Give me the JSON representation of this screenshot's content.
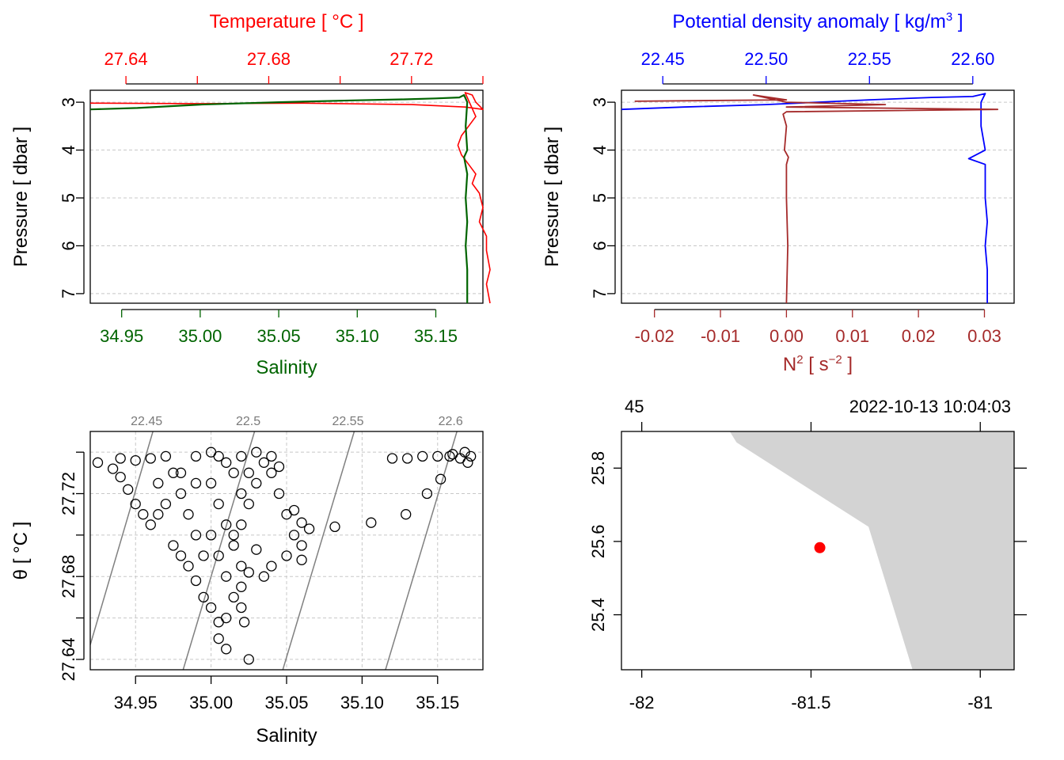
{
  "colors": {
    "temperature": "#ff0000",
    "salinity": "#006400",
    "density": "#0000ff",
    "n2": "#a52a2a",
    "isopycnal": "#808080",
    "land": "#d3d3d3",
    "station": "#ff0000"
  },
  "chart_data": [
    {
      "id": "profile_ts",
      "type": "line",
      "ylabel": "Pressure [ dbar ]",
      "ylim": [
        7.2,
        2.75
      ],
      "yticks": [
        3,
        4,
        5,
        6,
        7
      ],
      "grid": true,
      "top_axis": {
        "label": "Temperature [ °C ]",
        "ticks": [
          27.64,
          27.66,
          27.68,
          27.7,
          27.72,
          27.74
        ],
        "tick_labels": [
          "27.64",
          "",
          "27.68",
          "",
          "27.72",
          ""
        ],
        "range": [
          27.63,
          27.74
        ]
      },
      "bottom_axis": {
        "label": "Salinity",
        "ticks": [
          34.95,
          35.0,
          35.05,
          35.1,
          35.15
        ],
        "tick_labels": [
          "34.95",
          "35.00",
          "35.05",
          "35.10",
          "35.15"
        ],
        "range": [
          34.93,
          35.18
        ]
      },
      "series": [
        {
          "quantity": "temperature",
          "axis": "top",
          "points": [
            [
              27.63,
              3.02
            ],
            [
              27.66,
              3.03
            ],
            [
              27.69,
              3.02
            ],
            [
              27.72,
              3.05
            ],
            [
              27.735,
              3.1
            ],
            [
              27.74,
              3.15
            ],
            [
              27.738,
              3.0
            ],
            [
              27.737,
              2.85
            ],
            [
              27.735,
              2.8
            ],
            [
              27.738,
              3.3
            ],
            [
              27.736,
              3.5
            ],
            [
              27.734,
              3.7
            ],
            [
              27.733,
              3.9
            ],
            [
              27.734,
              4.1
            ],
            [
              27.736,
              4.3
            ],
            [
              27.738,
              4.5
            ],
            [
              27.737,
              4.7
            ],
            [
              27.739,
              4.9
            ],
            [
              27.74,
              5.2
            ],
            [
              27.739,
              5.5
            ],
            [
              27.741,
              5.8
            ],
            [
              27.741,
              6.1
            ],
            [
              27.742,
              6.5
            ],
            [
              27.741,
              6.8
            ],
            [
              27.742,
              7.2
            ]
          ]
        },
        {
          "quantity": "salinity",
          "axis": "bottom",
          "points": [
            [
              34.93,
              3.15
            ],
            [
              34.96,
              3.12
            ],
            [
              35.0,
              3.05
            ],
            [
              35.05,
              3.0
            ],
            [
              35.1,
              2.96
            ],
            [
              35.13,
              2.94
            ],
            [
              35.15,
              2.92
            ],
            [
              35.165,
              2.9
            ],
            [
              35.168,
              2.85
            ],
            [
              35.17,
              3.0
            ],
            [
              35.169,
              3.5
            ],
            [
              35.17,
              4.0
            ],
            [
              35.168,
              4.15
            ],
            [
              35.17,
              4.5
            ],
            [
              35.169,
              5.0
            ],
            [
              35.17,
              5.5
            ],
            [
              35.169,
              6.0
            ],
            [
              35.17,
              6.5
            ],
            [
              35.17,
              7.2
            ]
          ]
        }
      ]
    },
    {
      "id": "profile_density",
      "type": "line",
      "ylabel": "Pressure [ dbar ]",
      "ylim": [
        7.2,
        2.75
      ],
      "yticks": [
        3,
        4,
        5,
        6,
        7
      ],
      "grid": true,
      "top_axis": {
        "label": "Potential density anomaly [ kg/m",
        "label_sup": "3",
        "label_end": " ]",
        "ticks": [
          22.45,
          22.5,
          22.55,
          22.6
        ],
        "tick_labels": [
          "22.45",
          "22.50",
          "22.55",
          "22.60"
        ],
        "range": [
          22.43,
          22.62
        ]
      },
      "bottom_axis": {
        "label": "N",
        "label_sup": "2",
        "label_mid": " [ s",
        "label_sup2": "−2",
        "label_end": " ]",
        "ticks": [
          -0.02,
          -0.01,
          0.0,
          0.01,
          0.02,
          0.03
        ],
        "tick_labels": [
          "-0.02",
          "-0.01",
          "0.00",
          "0.01",
          "0.02",
          "0.03"
        ],
        "range": [
          -0.025,
          0.0345
        ]
      },
      "series": [
        {
          "quantity": "potential density anomaly",
          "axis": "top",
          "points": [
            [
              22.43,
              3.15
            ],
            [
              22.46,
              3.1
            ],
            [
              22.5,
              3.05
            ],
            [
              22.55,
              2.95
            ],
            [
              22.58,
              2.9
            ],
            [
              22.6,
              2.88
            ],
            [
              22.606,
              2.82
            ],
            [
              22.604,
              3.0
            ],
            [
              22.604,
              3.5
            ],
            [
              22.606,
              4.0
            ],
            [
              22.598,
              4.18
            ],
            [
              22.606,
              4.3
            ],
            [
              22.606,
              5.0
            ],
            [
              22.607,
              5.5
            ],
            [
              22.606,
              6.0
            ],
            [
              22.607,
              6.5
            ],
            [
              22.607,
              7.2
            ]
          ]
        },
        {
          "quantity": "N2",
          "axis": "bottom",
          "points": [
            [
              -0.023,
              2.98
            ],
            [
              0.0,
              2.95
            ],
            [
              -0.005,
              2.85
            ],
            [
              0.0,
              3.0
            ],
            [
              0.015,
              3.05
            ],
            [
              0.0,
              3.1
            ],
            [
              0.032,
              3.15
            ],
            [
              0.0,
              3.2
            ],
            [
              -0.0005,
              3.25
            ],
            [
              0.0,
              3.5
            ],
            [
              -0.0003,
              4.0
            ],
            [
              0.0003,
              4.15
            ],
            [
              0.0,
              4.3
            ],
            [
              0.0,
              5.0
            ],
            [
              0.0002,
              6.0
            ],
            [
              0.0,
              7.2
            ]
          ]
        }
      ]
    },
    {
      "id": "ts_diagram",
      "type": "scatter",
      "xlabel": "Salinity",
      "ylabel": "θ [ °C ]",
      "xlim": [
        34.92,
        35.18
      ],
      "ylim": [
        27.635,
        27.75
      ],
      "xticks": [
        34.95,
        35.0,
        35.05,
        35.1,
        35.15
      ],
      "xtick_labels": [
        "34.95",
        "35.00",
        "35.05",
        "35.10",
        "35.15"
      ],
      "yticks": [
        27.64,
        27.66,
        27.68,
        27.7,
        27.72,
        27.74
      ],
      "ytick_labels": [
        "27.64",
        "",
        "27.68",
        "",
        "27.72",
        ""
      ],
      "grid": true,
      "isopycnals": [
        {
          "label": "22.45",
          "line": [
            [
              34.92,
              27.647
            ],
            [
              34.9615,
              27.75
            ]
          ]
        },
        {
          "label": "22.5",
          "line": [
            [
              34.9815,
              27.635
            ],
            [
              35.0288,
              27.75
            ]
          ]
        },
        {
          "label": "22.55",
          "line": [
            [
              35.0475,
              27.635
            ],
            [
              35.0948,
              27.75
            ]
          ]
        },
        {
          "label": "22.6",
          "line": [
            [
              35.1155,
              27.635
            ],
            [
              35.1628,
              27.75
            ]
          ]
        }
      ],
      "points": [
        [
          34.925,
          27.735
        ],
        [
          34.935,
          27.732
        ],
        [
          34.94,
          27.728
        ],
        [
          34.945,
          27.722
        ],
        [
          34.95,
          27.715
        ],
        [
          34.955,
          27.71
        ],
        [
          34.96,
          27.705
        ],
        [
          34.965,
          27.71
        ],
        [
          34.97,
          27.715
        ],
        [
          34.965,
          27.725
        ],
        [
          34.975,
          27.73
        ],
        [
          34.98,
          27.72
        ],
        [
          34.985,
          27.71
        ],
        [
          34.99,
          27.7
        ],
        [
          34.975,
          27.695
        ],
        [
          34.98,
          27.69
        ],
        [
          34.985,
          27.685
        ],
        [
          34.99,
          27.678
        ],
        [
          34.995,
          27.67
        ],
        [
          35.0,
          27.665
        ],
        [
          35.005,
          27.658
        ],
        [
          35.005,
          27.65
        ],
        [
          35.01,
          27.645
        ],
        [
          35.01,
          27.66
        ],
        [
          35.015,
          27.67
        ],
        [
          35.02,
          27.675
        ],
        [
          35.02,
          27.665
        ],
        [
          35.022,
          27.658
        ],
        [
          35.025,
          27.64
        ],
        [
          35.02,
          27.685
        ],
        [
          35.015,
          27.695
        ],
        [
          35.02,
          27.705
        ],
        [
          35.025,
          27.715
        ],
        [
          35.03,
          27.725
        ],
        [
          35.035,
          27.735
        ],
        [
          35.04,
          27.73
        ],
        [
          35.045,
          27.72
        ],
        [
          35.05,
          27.71
        ],
        [
          35.055,
          27.7
        ],
        [
          35.06,
          27.695
        ],
        [
          35.06,
          27.688
        ],
        [
          35.05,
          27.69
        ],
        [
          35.04,
          27.685
        ],
        [
          35.035,
          27.68
        ],
        [
          35.025,
          27.682
        ],
        [
          35.03,
          27.693
        ],
        [
          34.99,
          27.738
        ],
        [
          35.0,
          27.74
        ],
        [
          35.005,
          27.738
        ],
        [
          35.01,
          27.735
        ],
        [
          35.015,
          27.73
        ],
        [
          35.02,
          27.738
        ],
        [
          35.03,
          27.74
        ],
        [
          35.04,
          27.738
        ],
        [
          35.045,
          27.733
        ],
        [
          35.0,
          27.725
        ],
        [
          35.005,
          27.715
        ],
        [
          35.01,
          27.705
        ],
        [
          35.0,
          27.7
        ],
        [
          34.995,
          27.69
        ],
        [
          35.005,
          27.69
        ],
        [
          35.01,
          27.68
        ],
        [
          35.015,
          27.7
        ],
        [
          35.02,
          27.72
        ],
        [
          35.025,
          27.73
        ],
        [
          34.98,
          27.73
        ],
        [
          34.99,
          27.725
        ],
        [
          34.97,
          27.738
        ],
        [
          34.96,
          27.737
        ],
        [
          34.95,
          27.736
        ],
        [
          34.94,
          27.737
        ],
        [
          35.055,
          27.712
        ],
        [
          35.06,
          27.706
        ],
        [
          35.065,
          27.703
        ],
        [
          35.082,
          27.704
        ],
        [
          35.106,
          27.706
        ],
        [
          35.129,
          27.71
        ],
        [
          35.143,
          27.72
        ],
        [
          35.152,
          27.727
        ],
        [
          35.12,
          27.737
        ],
        [
          35.13,
          27.737
        ],
        [
          35.14,
          27.738
        ],
        [
          35.15,
          27.738
        ],
        [
          35.16,
          27.739
        ],
        [
          35.168,
          27.74
        ],
        [
          35.17,
          27.735
        ],
        [
          35.172,
          27.738
        ],
        [
          35.165,
          27.737
        ],
        [
          35.158,
          27.738
        ]
      ]
    },
    {
      "id": "map",
      "type": "map",
      "xlim": [
        -82.06,
        -80.9
      ],
      "ylim": [
        25.25,
        25.9
      ],
      "xticks": [
        -82,
        -81.5,
        -81
      ],
      "xtick_labels": [
        "-82",
        "-81.5",
        "-81"
      ],
      "yticks": [
        25.4,
        25.6,
        25.8
      ],
      "ytick_labels": [
        "25.4",
        "25.6",
        "25.8"
      ],
      "top_left_label": "45",
      "top_right_label": "2022-10-13 10:04:03",
      "station": {
        "lon": -81.474,
        "lat": 25.583
      },
      "land": [
        [
          -81.74,
          25.9
        ],
        [
          -80.9,
          25.9
        ],
        [
          -80.9,
          25.25
        ],
        [
          -81.2,
          25.25
        ],
        [
          -81.33,
          25.64
        ],
        [
          -81.72,
          25.87
        ]
      ]
    }
  ]
}
